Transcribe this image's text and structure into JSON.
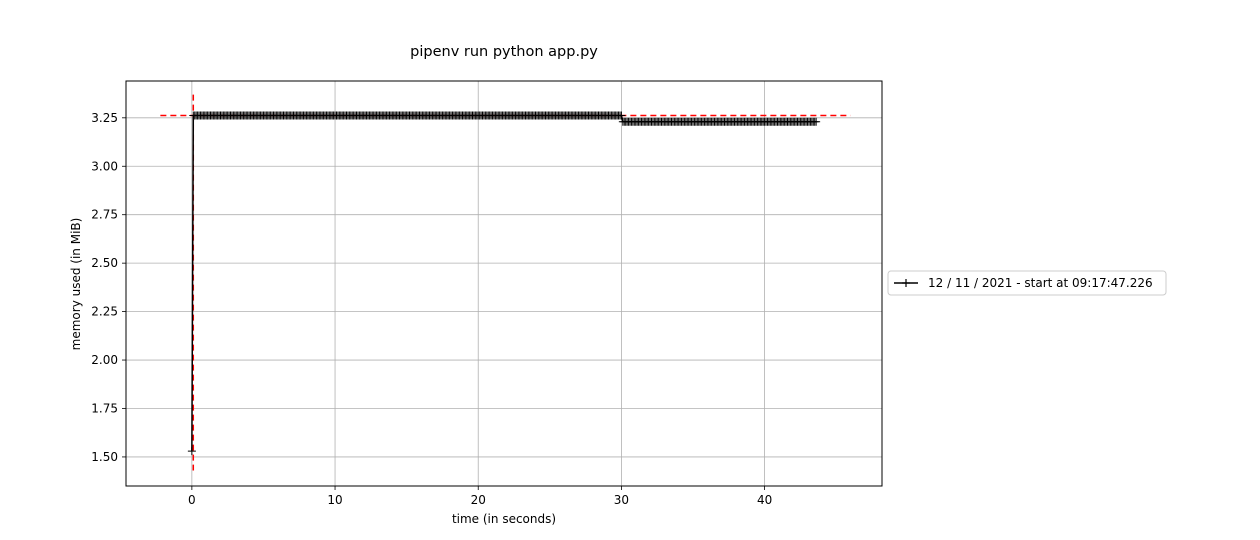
{
  "chart_data": {
    "type": "line",
    "title": "pipenv run python app.py",
    "xlabel": "time (in seconds)",
    "ylabel": "memory used (in MiB)",
    "xlim": [
      -4.6,
      48.2
    ],
    "ylim": [
      1.35,
      3.44
    ],
    "xticks": [
      0,
      10,
      20,
      30,
      40
    ],
    "yticks": [
      1.5,
      1.75,
      2.0,
      2.25,
      2.5,
      2.75,
      3.0,
      3.25
    ],
    "grid": true,
    "legend_position": "right",
    "series": [
      {
        "name": "12 / 11 / 2021 - start at 09:17:47.226",
        "color": "#000000",
        "marker": "+",
        "x": [
          0,
          0.1,
          30.0,
          30.1,
          43.6
        ],
        "y": [
          1.53,
          3.262,
          3.262,
          3.23,
          3.23
        ]
      }
    ],
    "annotations": {
      "max_memory_line_y": 3.262,
      "max_memory_vline_x": 0.1,
      "color": "#ff0000"
    }
  }
}
